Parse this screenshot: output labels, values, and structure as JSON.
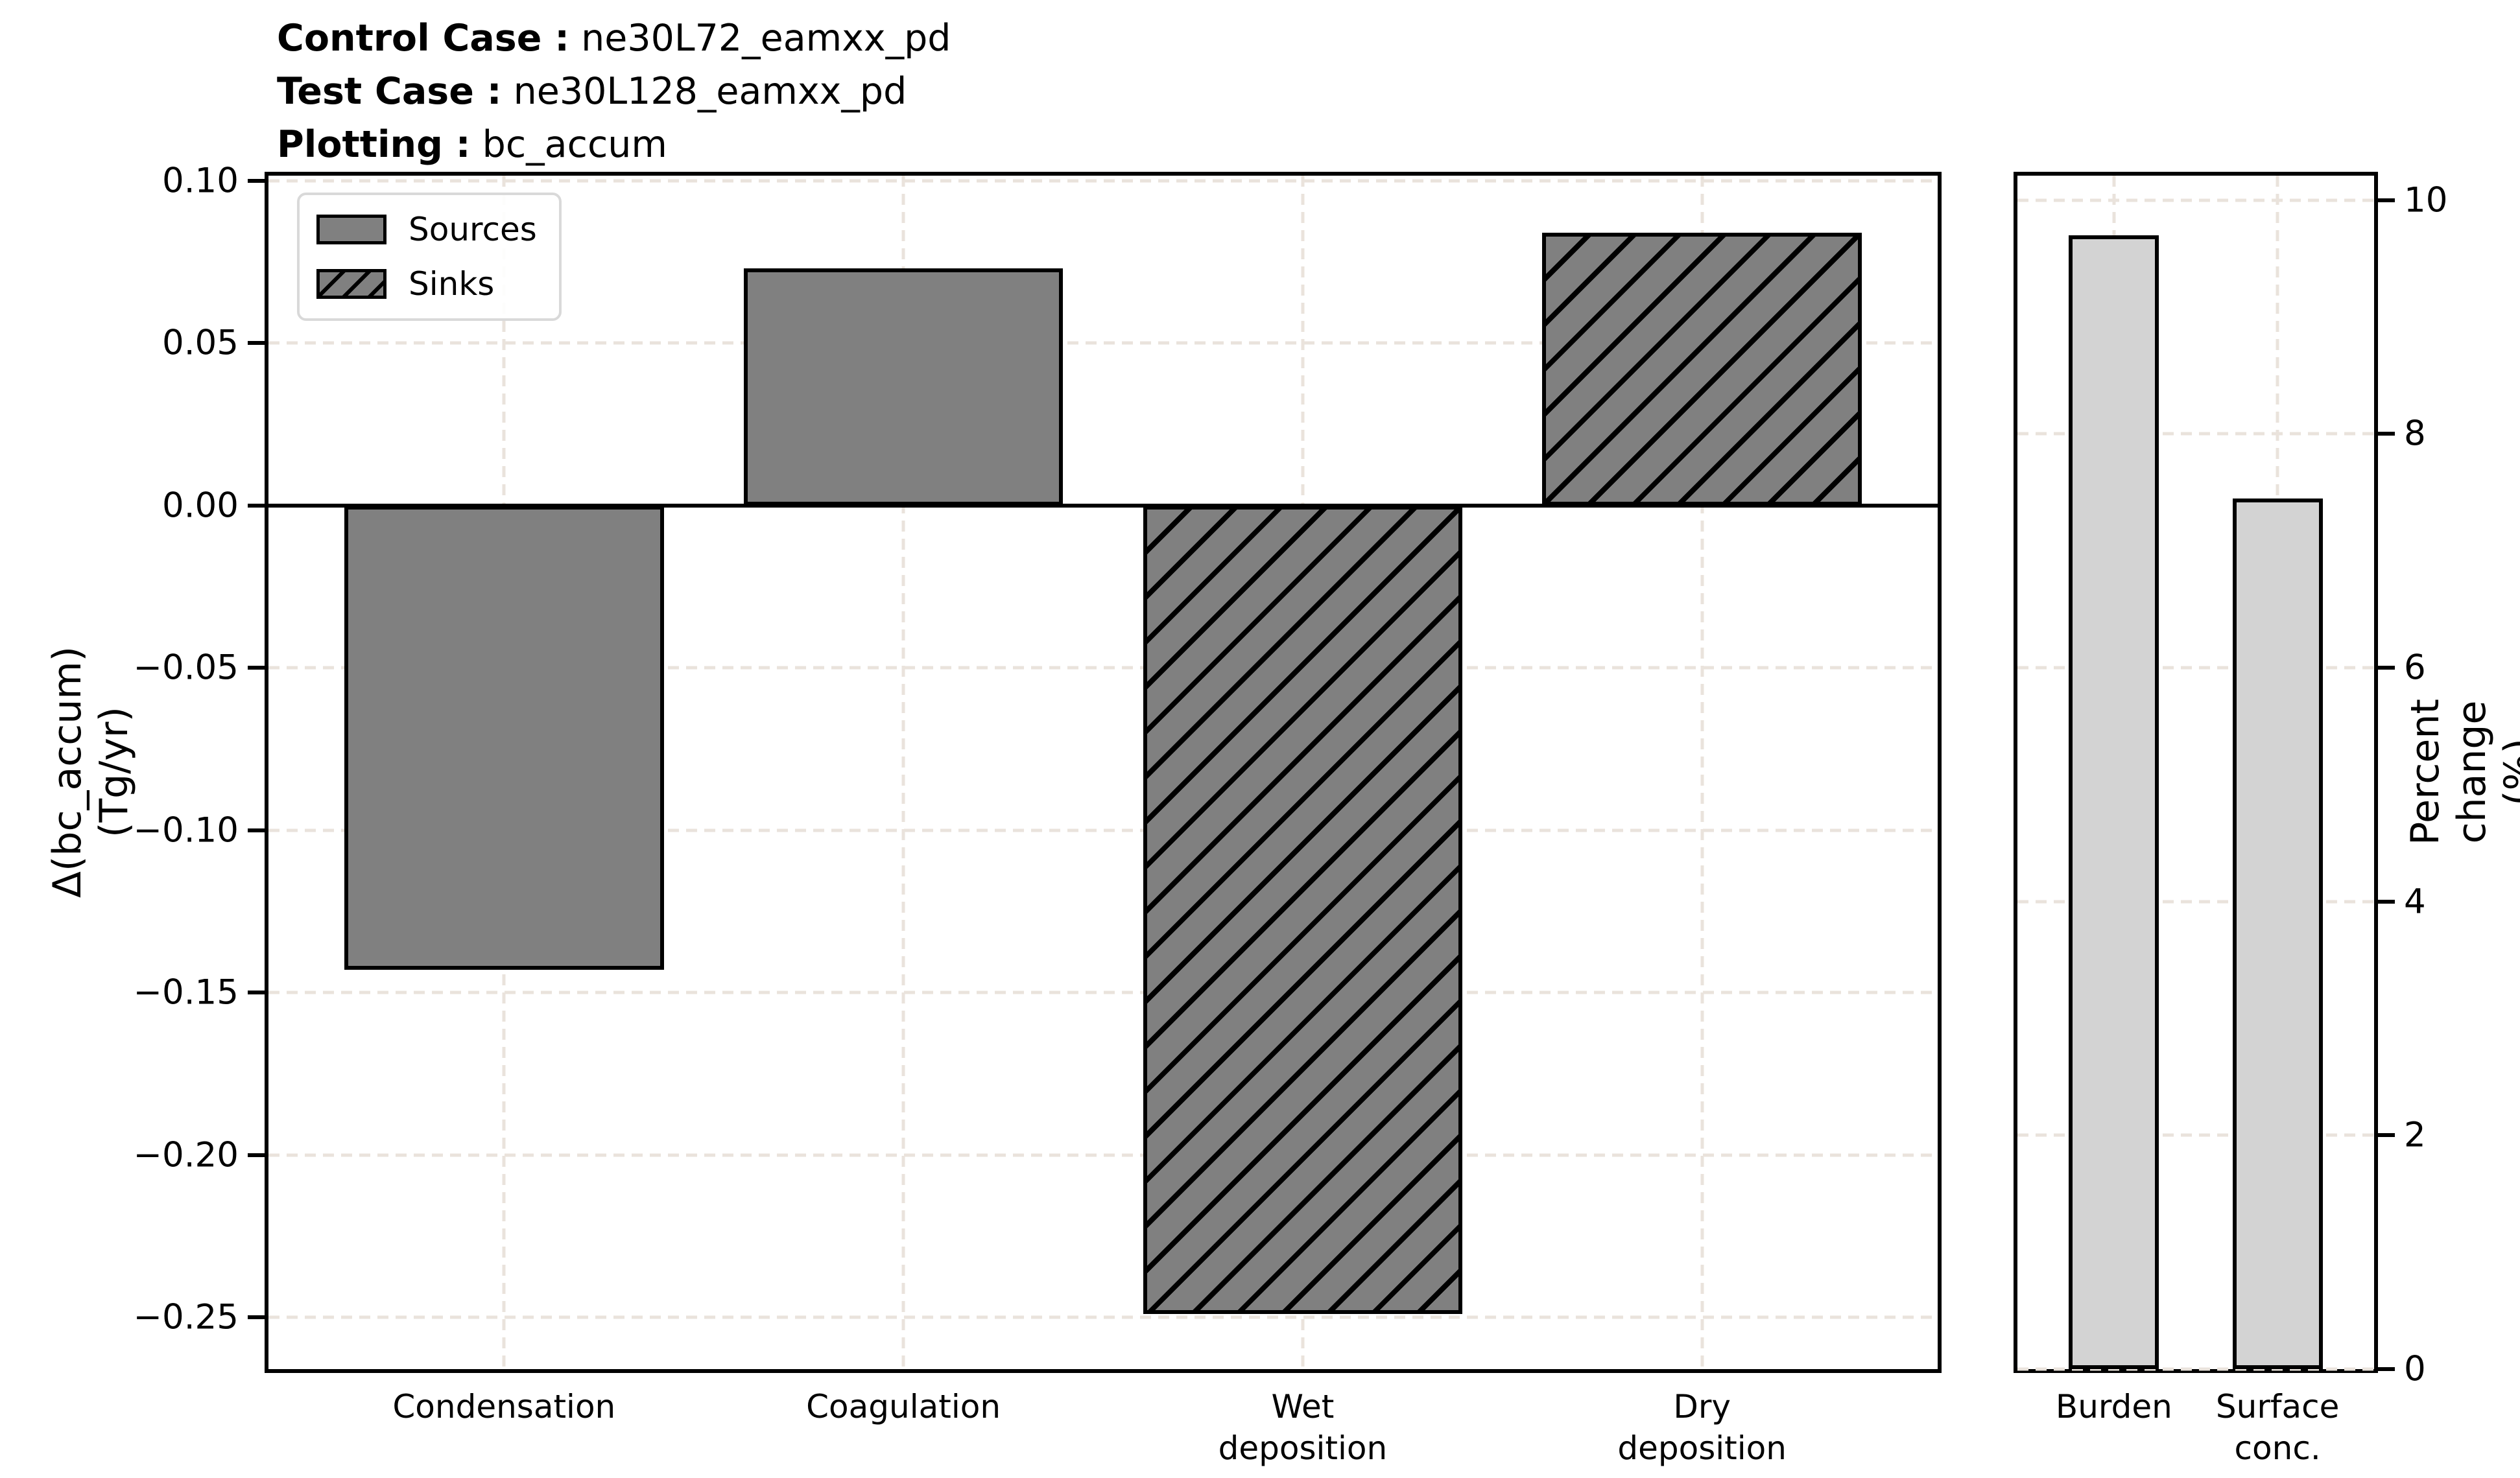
{
  "header": {
    "lines": [
      {
        "label": "Control Case :",
        "value": "ne30L72_eamxx_pd"
      },
      {
        "label": "Test Case :",
        "value": "ne30L128_eamxx_pd"
      },
      {
        "label": "Plotting :",
        "value": "bc_accum"
      }
    ]
  },
  "colors": {
    "bar_gray": "#808080",
    "bar_light_gray": "#d3d3d3",
    "bar_edge": "#000000",
    "grid": "#eae3dc",
    "spine": "#000000",
    "background": "#ffffff"
  },
  "chart_data": [
    {
      "id": "fluxes",
      "type": "bar",
      "title": "",
      "categories": [
        "Condensation",
        "Coagulation",
        "Wet\ndeposition",
        "Dry\ndeposition"
      ],
      "values": [
        -0.143,
        0.073,
        -0.249,
        0.084
      ],
      "bar_styles": [
        "solid",
        "solid",
        "hatched",
        "hatched"
      ],
      "ylabel": "Δ(bc_accum)\n(Tg/yr)",
      "yticks": [
        0.1,
        0.05,
        0.0,
        -0.05,
        -0.1,
        -0.15,
        -0.2,
        -0.25
      ],
      "ytick_labels": [
        "0.10",
        "0.05",
        "0.00",
        "−0.05",
        "−0.10",
        "−0.15",
        "−0.20",
        "−0.25"
      ],
      "ylim": [
        -0.2659,
        0.1016
      ],
      "xlim": [
        -0.59,
        3.59
      ],
      "bar_width": 0.8,
      "grid": true,
      "zero_line": true,
      "axis_side": "left",
      "legend": {
        "position": "upper-left",
        "entries": [
          {
            "label": "Sources",
            "style": "solid"
          },
          {
            "label": "Sinks",
            "style": "hatched"
          }
        ]
      }
    },
    {
      "id": "percent-change",
      "type": "bar",
      "title": "",
      "categories": [
        "Burden",
        "Surface\nconc."
      ],
      "values": [
        9.7,
        7.45
      ],
      "bar_styles": [
        "light",
        "light"
      ],
      "ylabel": "Percent change (%)",
      "yticks": [
        0,
        2,
        4,
        6,
        8,
        10
      ],
      "ytick_labels": [
        "0",
        "2",
        "4",
        "6",
        "8",
        "10"
      ],
      "ylim": [
        0,
        10.21
      ],
      "xlim": [
        -0.59,
        1.59
      ],
      "bar_width": 0.55,
      "grid": true,
      "zero_line": false,
      "axis_side": "right",
      "legend": null
    }
  ]
}
